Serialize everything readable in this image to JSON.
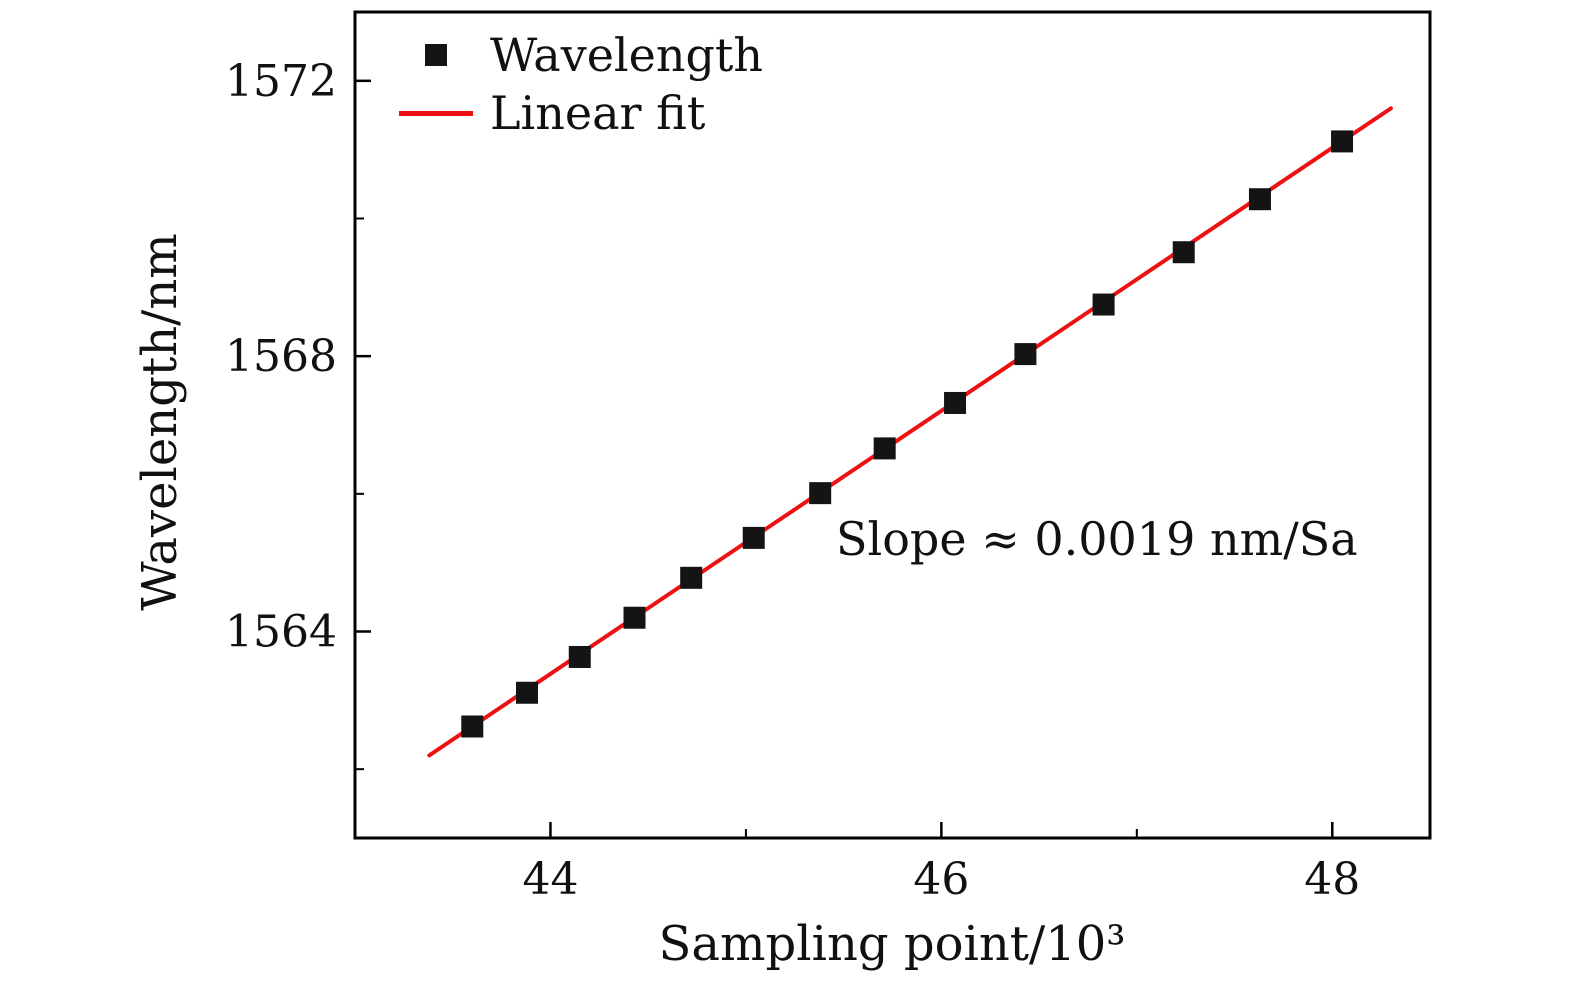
{
  "page": {
    "background": "#ffffff"
  },
  "chart_data": {
    "type": "scatter",
    "title": "",
    "xlabel": "Sampling point/10³",
    "ylabel": "Wavelength/nm",
    "xlim": [
      43.0,
      48.5
    ],
    "ylim": [
      1561.0,
      1573.0
    ],
    "x_major_ticks": [
      44,
      46,
      48
    ],
    "x_minor_ticks": [
      45,
      47
    ],
    "y_major_ticks": [
      1564,
      1568,
      1572
    ],
    "y_minor_ticks": [
      1562,
      1566,
      1570
    ],
    "grid": false,
    "legend_position": "top-left-inside",
    "annotation": {
      "text": "Slope ≈ 0.0019 nm/Sa"
    },
    "series": [
      {
        "name": "Wavelength",
        "type": "scatter",
        "marker": "square",
        "color": "#141414",
        "x": [
          43.6,
          43.88,
          44.15,
          44.43,
          44.72,
          45.04,
          45.38,
          45.71,
          46.07,
          46.43,
          46.83,
          47.24,
          47.63,
          48.05
        ],
        "y": [
          1562.62,
          1563.11,
          1563.63,
          1564.2,
          1564.78,
          1565.36,
          1566.01,
          1566.66,
          1567.32,
          1568.03,
          1568.75,
          1569.51,
          1570.28,
          1571.12
        ]
      },
      {
        "name": "Linear fit",
        "type": "line",
        "color": "#ee1111",
        "x": [
          43.38,
          48.3
        ],
        "y": [
          1562.2,
          1571.6
        ]
      }
    ]
  },
  "colors": {
    "axis": "#000000",
    "tick_label": "#111111",
    "marker": "#141414",
    "fit_line": "#ee1111",
    "background": "#ffffff"
  }
}
